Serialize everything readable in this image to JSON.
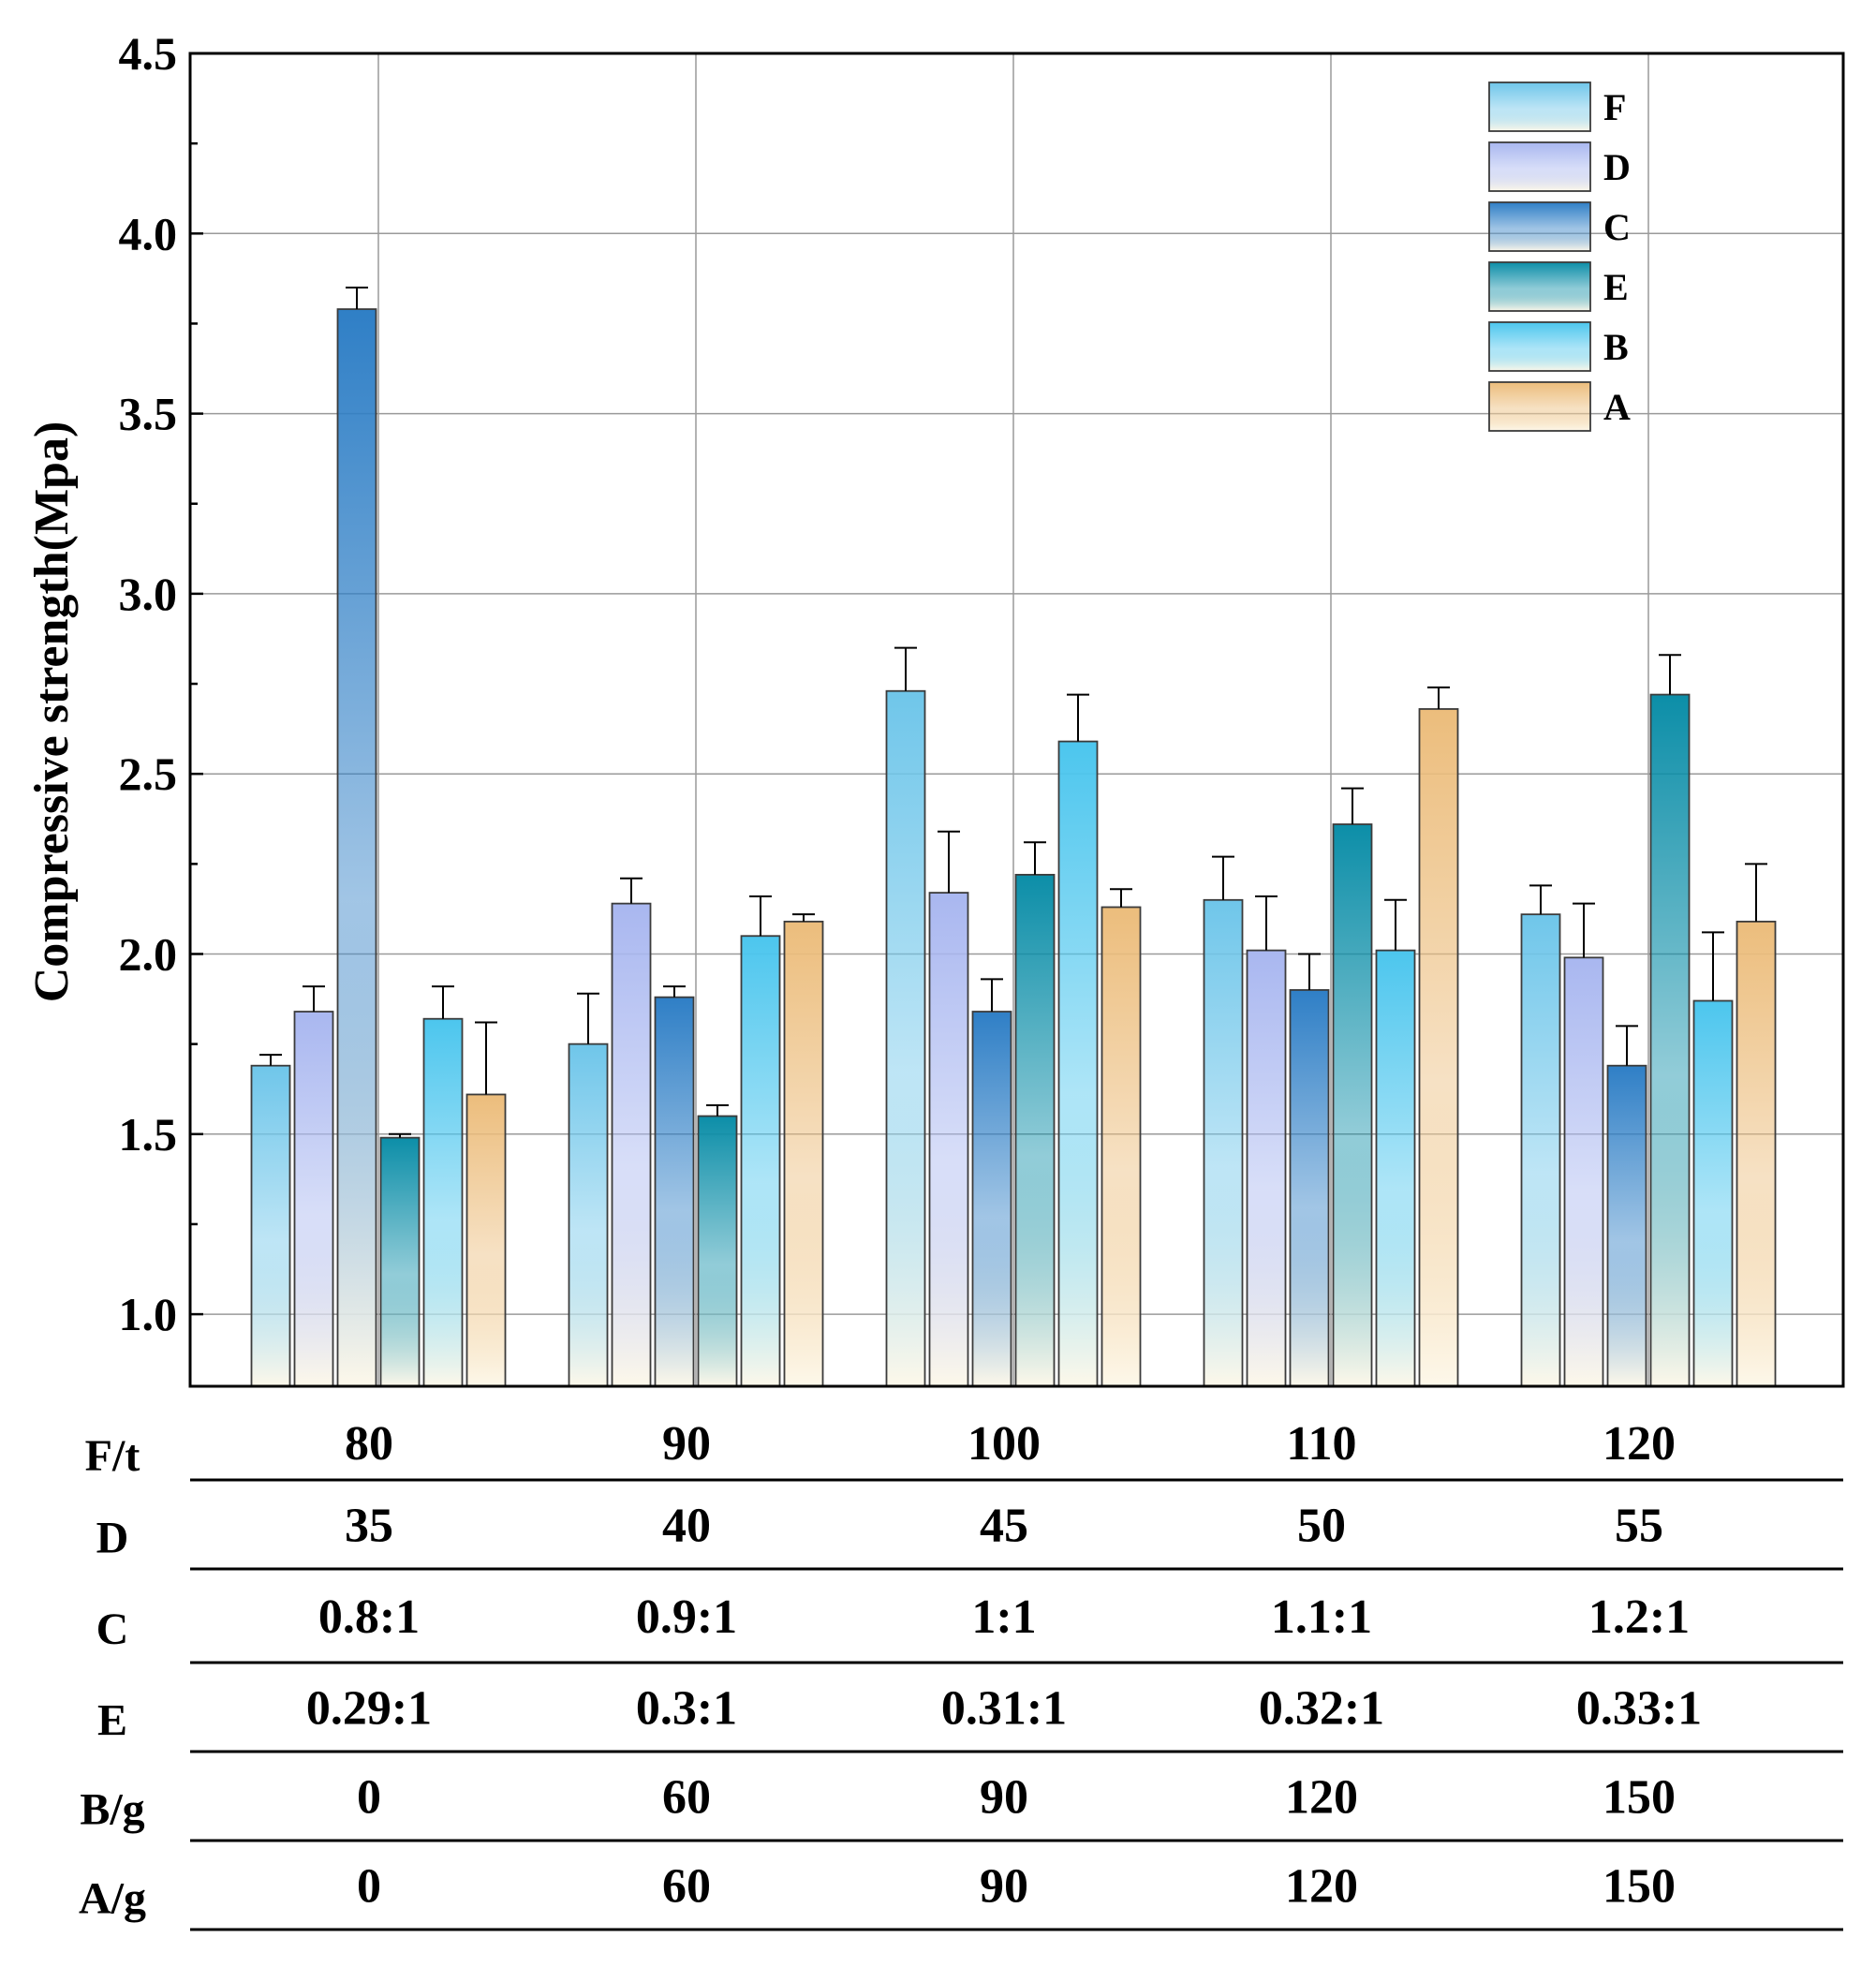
{
  "chart_data": {
    "type": "bar",
    "title": "",
    "xlabel": "",
    "ylabel": "Compressive strength(Mpa)",
    "ylim": [
      0.8,
      4.5
    ],
    "yticks": [
      "1.0",
      "1.5",
      "2.0",
      "2.5",
      "3.0",
      "3.5",
      "4.0",
      "4.5"
    ],
    "grid": true,
    "legend_position": "top-right",
    "groups": 5,
    "series": [
      {
        "name": "F",
        "color": "#6fc6ea",
        "values": [
          1.69,
          1.75,
          2.73,
          2.15,
          2.11
        ],
        "errors": [
          0.03,
          0.14,
          0.12,
          0.12,
          0.08
        ]
      },
      {
        "name": "D",
        "color": "#a9b7f0",
        "values": [
          1.84,
          2.14,
          2.17,
          2.01,
          1.99
        ],
        "errors": [
          0.07,
          0.07,
          0.17,
          0.15,
          0.15
        ]
      },
      {
        "name": "C",
        "color": "#2f7fc6",
        "values": [
          3.79,
          1.88,
          1.84,
          1.9,
          1.69
        ],
        "errors": [
          0.06,
          0.03,
          0.09,
          0.1,
          0.11
        ]
      },
      {
        "name": "E",
        "color": "#0c8ea8",
        "values": [
          1.49,
          1.55,
          2.22,
          2.36,
          2.72
        ],
        "errors": [
          0.01,
          0.03,
          0.09,
          0.1,
          0.11
        ]
      },
      {
        "name": "B",
        "color": "#4cc6ee",
        "values": [
          1.82,
          2.05,
          2.59,
          2.01,
          1.87
        ],
        "errors": [
          0.09,
          0.11,
          0.13,
          0.14,
          0.19
        ]
      },
      {
        "name": "A",
        "color": "#ecbd7c",
        "values": [
          1.61,
          2.09,
          2.13,
          2.68,
          2.09
        ],
        "errors": [
          0.2,
          0.02,
          0.05,
          0.06,
          0.16
        ]
      }
    ],
    "table": {
      "rows": [
        {
          "label": "F/t",
          "values": [
            "80",
            "90",
            "100",
            "110",
            "120"
          ]
        },
        {
          "label": "D",
          "values": [
            "35",
            "40",
            "45",
            "50",
            "55"
          ]
        },
        {
          "label": "C",
          "values": [
            "0.8:1",
            "0.9:1",
            "1:1",
            "1.1:1",
            "1.2:1"
          ]
        },
        {
          "label": "E",
          "values": [
            "0.29:1",
            "0.3:1",
            "0.31:1",
            "0.32:1",
            "0.33:1"
          ]
        },
        {
          "label": "B/g",
          "values": [
            "0",
            "60",
            "90",
            "120",
            "150"
          ]
        },
        {
          "label": "A/g",
          "values": [
            "0",
            "60",
            "90",
            "120",
            "150"
          ]
        }
      ]
    }
  }
}
